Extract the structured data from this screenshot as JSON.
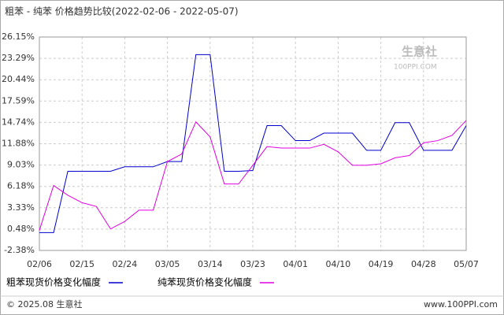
{
  "chart_data": {
    "type": "line",
    "title": "粗苯 - 纯苯 价格趋势比较(2022-02-06 - 2022-05-07)",
    "categories": [
      "02/06",
      null,
      null,
      "02/15",
      null,
      null,
      "02/24",
      null,
      null,
      "03/05",
      null,
      null,
      "03/14",
      null,
      null,
      "03/23",
      null,
      null,
      "04/01",
      null,
      null,
      "04/10",
      null,
      null,
      "04/19",
      null,
      null,
      "04/28",
      null,
      null,
      "05/07"
    ],
    "series": [
      {
        "name": "粗苯现货价格变化幅度",
        "color": "#0000cc",
        "values": [
          0.0,
          0.0,
          8.2,
          8.2,
          8.2,
          8.2,
          8.8,
          8.8,
          8.8,
          9.5,
          9.5,
          23.8,
          23.8,
          8.2,
          8.2,
          8.3,
          14.3,
          14.3,
          12.3,
          12.3,
          13.3,
          13.3,
          13.3,
          11.0,
          11.0,
          14.7,
          14.7,
          11.0,
          11.0,
          11.0,
          14.3
        ]
      },
      {
        "name": "纯苯现货价格变化幅度",
        "color": "#e000e0",
        "values": [
          0.3,
          6.3,
          5.0,
          4.0,
          3.5,
          0.5,
          1.5,
          3.0,
          3.0,
          9.5,
          10.5,
          14.8,
          12.8,
          6.5,
          6.5,
          9.0,
          11.5,
          11.3,
          11.3,
          11.3,
          11.8,
          10.8,
          9.0,
          9.0,
          9.2,
          10.0,
          10.3,
          12.0,
          12.3,
          13.0,
          15.0
        ]
      }
    ],
    "ylim": [
      -2.38,
      26.15
    ],
    "yticks": [
      {
        "value": -2.38,
        "label": "-2.38%"
      },
      {
        "value": 0.48,
        "label": "0.48%"
      },
      {
        "value": 3.33,
        "label": "3.33%"
      },
      {
        "value": 6.18,
        "label": "6.18%"
      },
      {
        "value": 9.03,
        "label": "9.03%"
      },
      {
        "value": 11.88,
        "label": "11.88%"
      },
      {
        "value": 14.74,
        "label": "14.74%"
      },
      {
        "value": 17.59,
        "label": "17.59%"
      },
      {
        "value": 20.44,
        "label": "20.44%"
      },
      {
        "value": 23.29,
        "label": "23.29%"
      },
      {
        "value": 26.15,
        "label": "26.15%"
      }
    ],
    "grid": true,
    "watermark": "生意社",
    "watermark_url": "100PPI.COM",
    "footer_left": "© 2025.08 生意社",
    "footer_right": "www.100PPI.com"
  }
}
